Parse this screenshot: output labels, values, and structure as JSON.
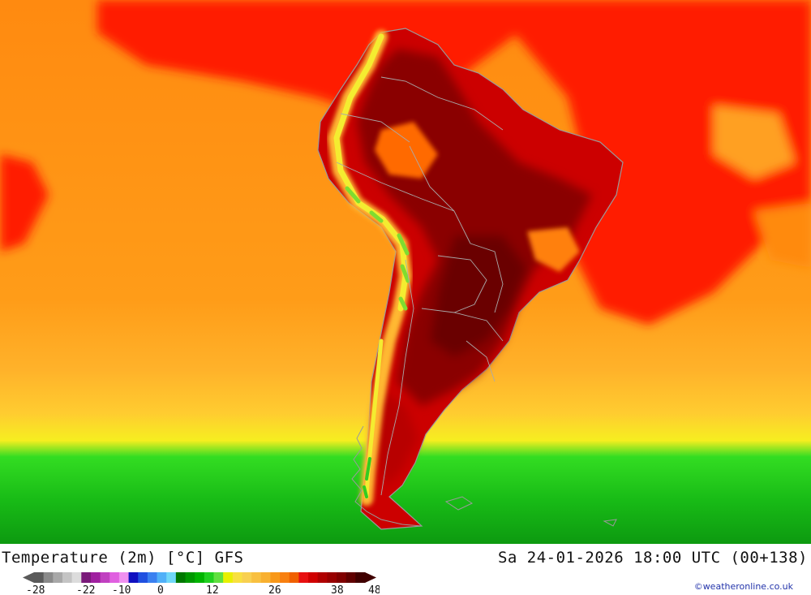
{
  "map": {
    "title": "Temperature (2m) [°C] GFS",
    "datetime": "Sa 24-01-2026 18:00 UTC (00+138)",
    "region": "South America",
    "copyright": "©weatheronline.co.uk"
  },
  "legend": {
    "colors": [
      "#5a5a5a",
      "#8a8a8a",
      "#a8a8a8",
      "#c4c4c4",
      "#dcdcdc",
      "#7a1a7a",
      "#a020a0",
      "#c040c0",
      "#e060e0",
      "#f090f0",
      "#1010c0",
      "#2050e0",
      "#3a80f0",
      "#50b0f8",
      "#70d8f8",
      "#007800",
      "#009800",
      "#00b400",
      "#20d020",
      "#60e040",
      "#e8f000",
      "#f8e040",
      "#f8d050",
      "#f8c040",
      "#f8b030",
      "#f89818",
      "#f88010",
      "#f06000",
      "#e81010",
      "#d00000",
      "#b00000",
      "#980000",
      "#800000",
      "#600000",
      "#400000"
    ],
    "ticks": [
      "-28",
      "-22",
      "-10",
      "0",
      "12",
      "26",
      "38",
      "48"
    ]
  }
}
